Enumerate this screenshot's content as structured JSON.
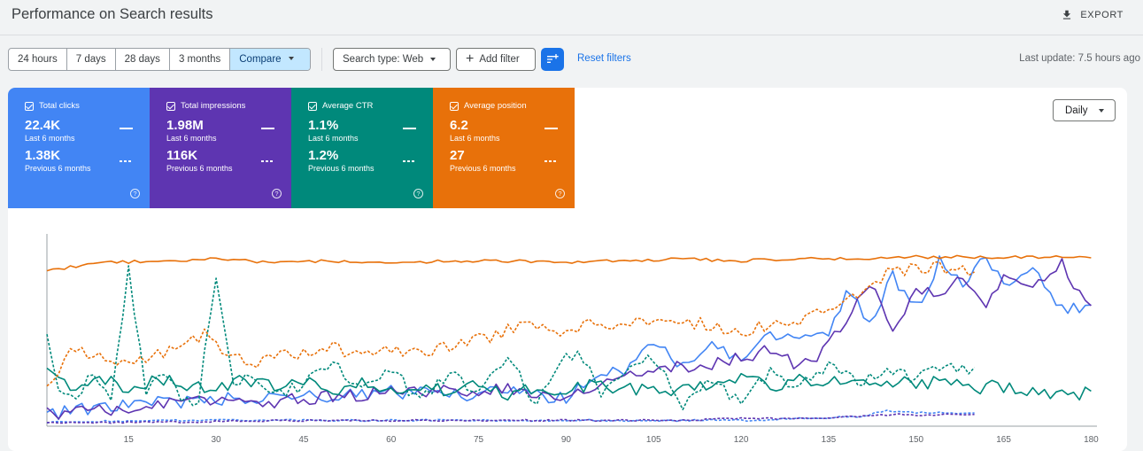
{
  "header": {
    "title": "Performance on Search results",
    "export_label": "EXPORT"
  },
  "filters": {
    "ranges": [
      "24 hours",
      "7 days",
      "28 days",
      "3 months",
      "Compare"
    ],
    "selected_range": "Compare",
    "search_type_label": "Search type: Web",
    "add_filter_label": "Add filter",
    "reset_label": "Reset filters",
    "last_update": "Last update: 7.5 hours ago"
  },
  "metrics": [
    {
      "label": "Total clicks",
      "value": "22.4K",
      "period": "Last 6 months",
      "prev_value": "1.38K",
      "prev_period": "Previous 6 months",
      "color": "#4285f4"
    },
    {
      "label": "Total impressions",
      "value": "1.98M",
      "period": "Last 6 months",
      "prev_value": "116K",
      "prev_period": "Previous 6 months",
      "color": "#5e35b1"
    },
    {
      "label": "Average CTR",
      "value": "1.1%",
      "period": "Last 6 months",
      "prev_value": "1.2%",
      "prev_period": "Previous 6 months",
      "color": "#00897b"
    },
    {
      "label": "Average position",
      "value": "6.2",
      "period": "Last 6 months",
      "prev_value": "27",
      "prev_period": "Previous 6 months",
      "color": "#e8710a"
    }
  ],
  "granularity": "Daily",
  "chart_data": {
    "type": "line",
    "x_ticks": [
      15,
      30,
      45,
      60,
      75,
      90,
      105,
      120,
      135,
      150,
      165,
      180
    ],
    "xlim": [
      1,
      181
    ],
    "ylim": [
      0,
      100
    ],
    "series": [
      {
        "name": "Total clicks",
        "style": "solid",
        "color": "#4285f4",
        "points": [
          [
            1,
            6
          ],
          [
            10,
            10
          ],
          [
            20,
            12
          ],
          [
            30,
            14
          ],
          [
            40,
            16
          ],
          [
            50,
            15
          ],
          [
            60,
            18
          ],
          [
            70,
            16
          ],
          [
            80,
            18
          ],
          [
            90,
            14
          ],
          [
            95,
            25
          ],
          [
            100,
            30
          ],
          [
            105,
            42
          ],
          [
            110,
            32
          ],
          [
            115,
            45
          ],
          [
            120,
            33
          ],
          [
            125,
            48
          ],
          [
            130,
            46
          ],
          [
            135,
            50
          ],
          [
            138,
            70
          ],
          [
            142,
            55
          ],
          [
            146,
            78
          ],
          [
            150,
            62
          ],
          [
            154,
            85
          ],
          [
            158,
            72
          ],
          [
            162,
            88
          ],
          [
            166,
            70
          ],
          [
            170,
            85
          ],
          [
            175,
            60
          ],
          [
            180,
            62
          ]
        ]
      },
      {
        "name": "Total impressions",
        "style": "solid",
        "color": "#5e35b1",
        "points": [
          [
            1,
            7
          ],
          [
            10,
            8
          ],
          [
            20,
            12
          ],
          [
            30,
            14
          ],
          [
            40,
            13
          ],
          [
            50,
            16
          ],
          [
            60,
            17
          ],
          [
            70,
            18
          ],
          [
            80,
            19
          ],
          [
            90,
            15
          ],
          [
            100,
            26
          ],
          [
            105,
            30
          ],
          [
            110,
            31
          ],
          [
            115,
            33
          ],
          [
            120,
            36
          ],
          [
            125,
            40
          ],
          [
            130,
            30
          ],
          [
            135,
            42
          ],
          [
            138,
            55
          ],
          [
            142,
            75
          ],
          [
            146,
            50
          ],
          [
            150,
            72
          ],
          [
            154,
            70
          ],
          [
            158,
            80
          ],
          [
            162,
            65
          ],
          [
            166,
            80
          ],
          [
            170,
            70
          ],
          [
            175,
            85
          ],
          [
            180,
            60
          ]
        ]
      },
      {
        "name": "Average CTR",
        "style": "solid",
        "color": "#00897b",
        "points": [
          [
            1,
            30
          ],
          [
            5,
            20
          ],
          [
            10,
            25
          ],
          [
            15,
            20
          ],
          [
            20,
            25
          ],
          [
            25,
            22
          ],
          [
            30,
            18
          ],
          [
            35,
            25
          ],
          [
            40,
            20
          ],
          [
            45,
            24
          ],
          [
            50,
            18
          ],
          [
            55,
            24
          ],
          [
            60,
            20
          ],
          [
            65,
            22
          ],
          [
            70,
            18
          ],
          [
            75,
            21
          ],
          [
            80,
            17
          ],
          [
            85,
            20
          ],
          [
            90,
            18
          ],
          [
            95,
            22
          ],
          [
            100,
            19
          ],
          [
            105,
            20
          ],
          [
            110,
            18
          ],
          [
            115,
            22
          ],
          [
            120,
            24
          ],
          [
            125,
            21
          ],
          [
            130,
            25
          ],
          [
            135,
            23
          ],
          [
            140,
            24
          ],
          [
            145,
            22
          ],
          [
            150,
            23
          ],
          [
            155,
            22
          ],
          [
            160,
            20
          ],
          [
            165,
            21
          ],
          [
            170,
            19
          ],
          [
            175,
            17
          ],
          [
            180,
            17
          ]
        ]
      },
      {
        "name": "Average position",
        "style": "solid",
        "color": "#e8710a",
        "points": [
          [
            1,
            81
          ],
          [
            10,
            85
          ],
          [
            20,
            86
          ],
          [
            30,
            87
          ],
          [
            40,
            85
          ],
          [
            50,
            86
          ],
          [
            60,
            85
          ],
          [
            70,
            86
          ],
          [
            80,
            86
          ],
          [
            90,
            85
          ],
          [
            100,
            86
          ],
          [
            110,
            87
          ],
          [
            120,
            86
          ],
          [
            130,
            87
          ],
          [
            140,
            87
          ],
          [
            150,
            88
          ],
          [
            160,
            88
          ],
          [
            170,
            88
          ],
          [
            180,
            88
          ]
        ]
      },
      {
        "name": "Total clicks (previous)",
        "style": "dashed",
        "color": "#4285f4",
        "points": [
          [
            1,
            2
          ],
          [
            20,
            3
          ],
          [
            40,
            3
          ],
          [
            60,
            3
          ],
          [
            80,
            3
          ],
          [
            100,
            3
          ],
          [
            110,
            3
          ],
          [
            120,
            3
          ],
          [
            130,
            4
          ],
          [
            140,
            5
          ],
          [
            145,
            8
          ],
          [
            150,
            7
          ],
          [
            160,
            7
          ]
        ]
      },
      {
        "name": "Total impressions (previous)",
        "style": "dashed",
        "color": "#5e35b1",
        "points": [
          [
            1,
            2
          ],
          [
            20,
            2
          ],
          [
            40,
            3
          ],
          [
            60,
            3
          ],
          [
            80,
            3
          ],
          [
            100,
            3
          ],
          [
            110,
            3
          ],
          [
            120,
            4
          ],
          [
            130,
            4
          ],
          [
            140,
            5
          ],
          [
            145,
            6
          ],
          [
            150,
            6
          ],
          [
            160,
            6
          ]
        ]
      },
      {
        "name": "Average CTR (previous)",
        "style": "dashed",
        "color": "#00897b",
        "points": [
          [
            1,
            45
          ],
          [
            3,
            20
          ],
          [
            6,
            12
          ],
          [
            9,
            28
          ],
          [
            12,
            15
          ],
          [
            15,
            80
          ],
          [
            18,
            18
          ],
          [
            21,
            30
          ],
          [
            24,
            12
          ],
          [
            27,
            15
          ],
          [
            30,
            78
          ],
          [
            33,
            20
          ],
          [
            36,
            25
          ],
          [
            40,
            15
          ],
          [
            45,
            22
          ],
          [
            50,
            35
          ],
          [
            55,
            18
          ],
          [
            60,
            30
          ],
          [
            65,
            12
          ],
          [
            70,
            28
          ],
          [
            75,
            15
          ],
          [
            80,
            38
          ],
          [
            85,
            10
          ],
          [
            88,
            30
          ],
          [
            92,
            40
          ],
          [
            96,
            15
          ],
          [
            100,
            30
          ],
          [
            105,
            35
          ],
          [
            110,
            10
          ],
          [
            115,
            25
          ],
          [
            120,
            12
          ],
          [
            125,
            28
          ],
          [
            130,
            20
          ],
          [
            135,
            30
          ],
          [
            140,
            22
          ],
          [
            145,
            30
          ],
          [
            150,
            25
          ],
          [
            155,
            30
          ],
          [
            160,
            30
          ]
        ]
      },
      {
        "name": "Average position (previous)",
        "style": "dashed",
        "color": "#e8710a",
        "points": [
          [
            1,
            20
          ],
          [
            5,
            40
          ],
          [
            10,
            35
          ],
          [
            15,
            32
          ],
          [
            20,
            38
          ],
          [
            25,
            42
          ],
          [
            28,
            48
          ],
          [
            32,
            38
          ],
          [
            36,
            30
          ],
          [
            40,
            35
          ],
          [
            45,
            38
          ],
          [
            50,
            42
          ],
          [
            55,
            35
          ],
          [
            60,
            40
          ],
          [
            65,
            38
          ],
          [
            70,
            42
          ],
          [
            75,
            45
          ],
          [
            80,
            50
          ],
          [
            85,
            52
          ],
          [
            90,
            48
          ],
          [
            95,
            55
          ],
          [
            100,
            52
          ],
          [
            105,
            56
          ],
          [
            110,
            55
          ],
          [
            115,
            52
          ],
          [
            120,
            50
          ],
          [
            125,
            52
          ],
          [
            130,
            55
          ],
          [
            135,
            60
          ],
          [
            140,
            70
          ],
          [
            145,
            80
          ],
          [
            150,
            83
          ],
          [
            155,
            82
          ],
          [
            160,
            80
          ]
        ]
      }
    ]
  }
}
